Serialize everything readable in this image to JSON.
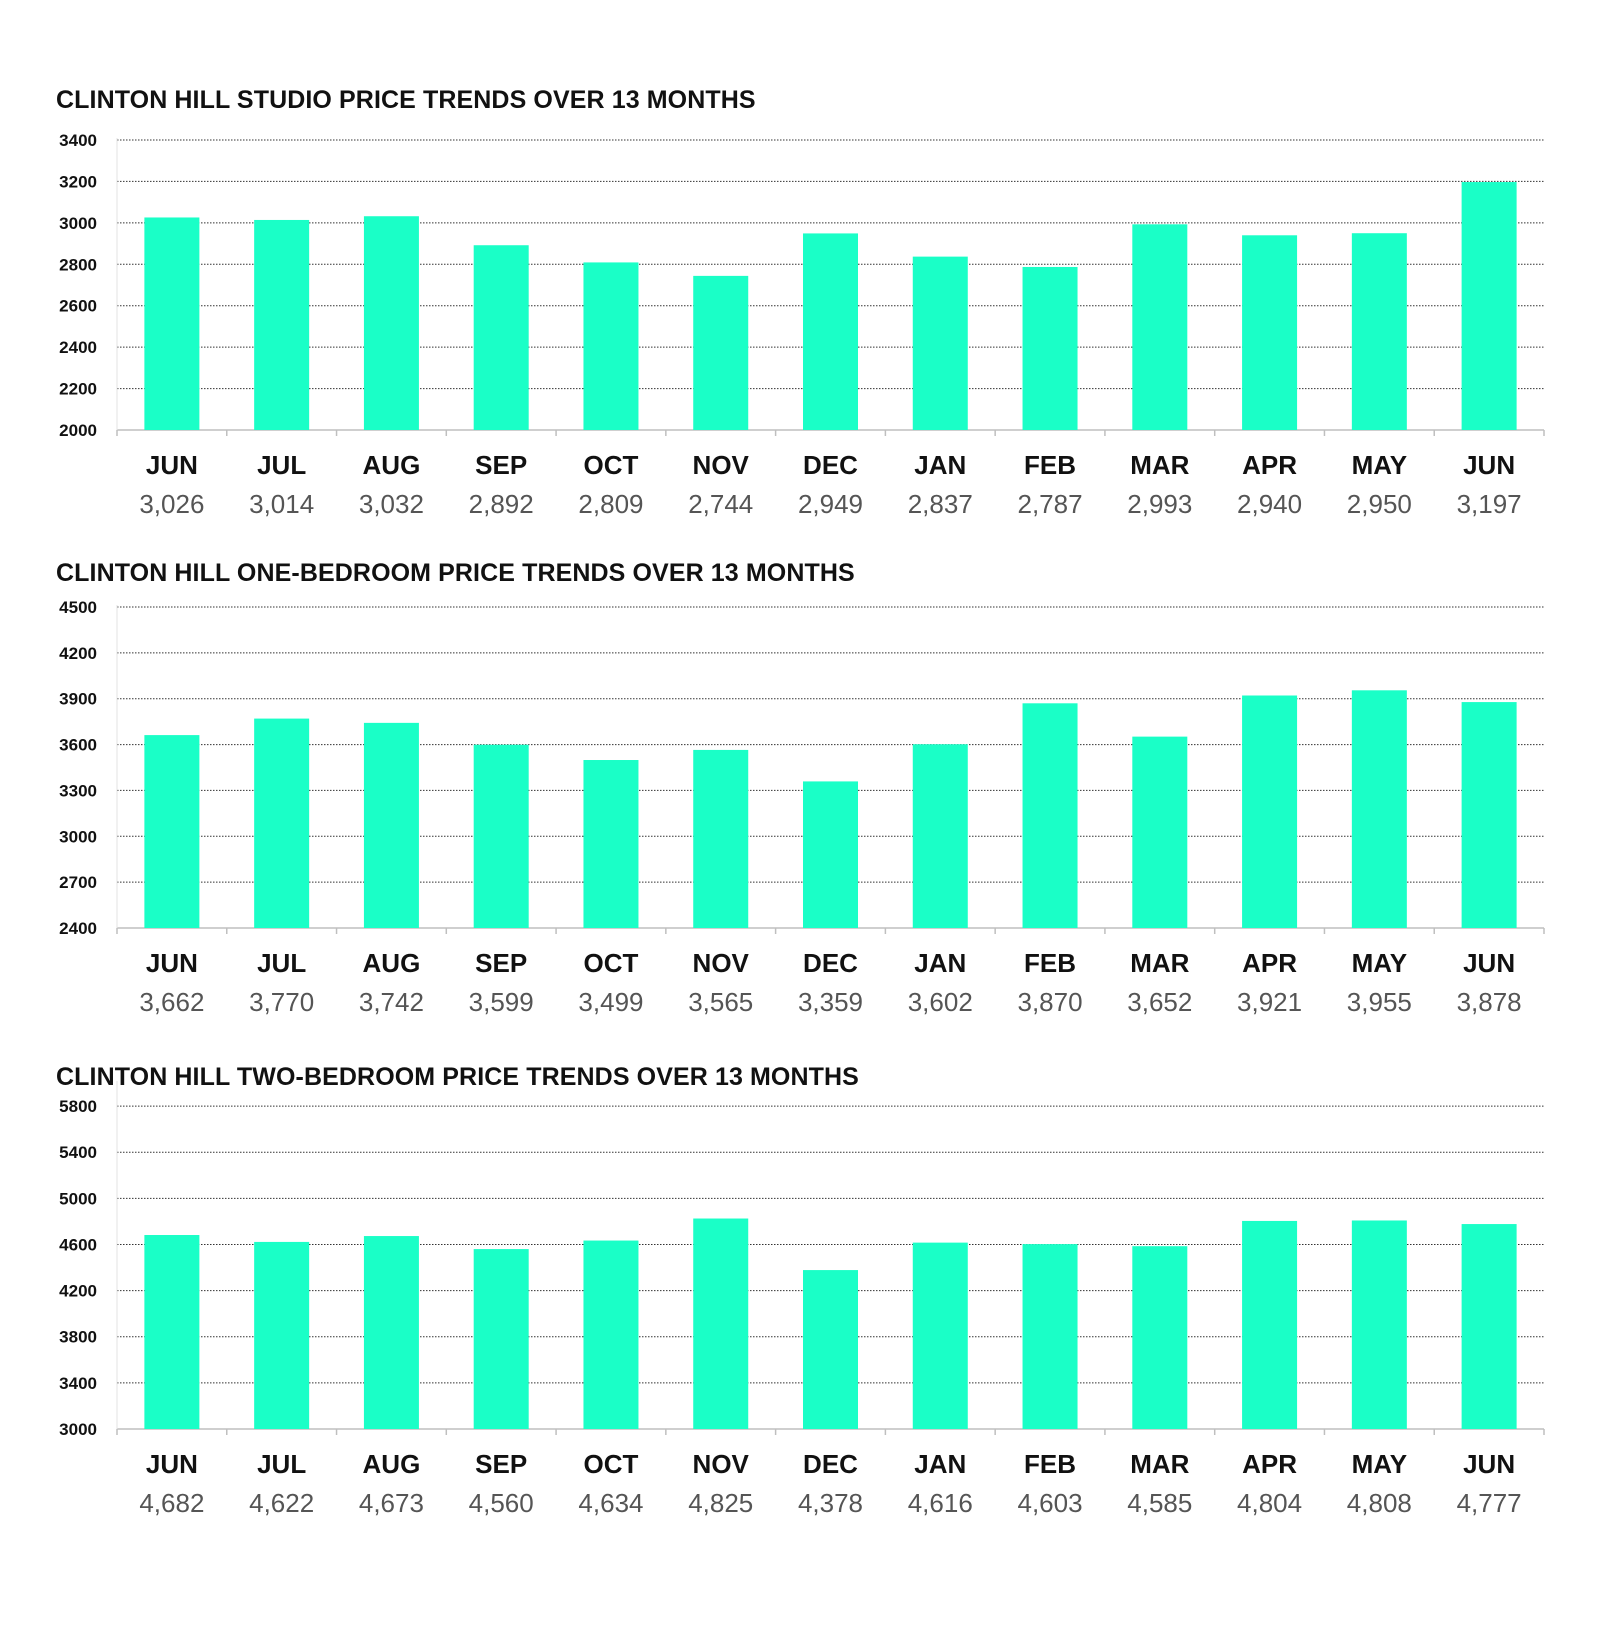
{
  "chart_data": [
    {
      "type": "bar",
      "title": "CLINTON HILL STUDIO PRICE TRENDS OVER 13 MONTHS",
      "categories": [
        "JUN",
        "JUL",
        "AUG",
        "SEP",
        "OCT",
        "NOV",
        "DEC",
        "JAN",
        "FEB",
        "MAR",
        "APR",
        "MAY",
        "JUN"
      ],
      "values": [
        3026,
        3014,
        3032,
        2892,
        2809,
        2744,
        2949,
        2837,
        2787,
        2993,
        2940,
        2950,
        3197
      ],
      "value_labels": [
        "3,026",
        "3,014",
        "3,032",
        "2,892",
        "2,809",
        "2,744",
        "2,949",
        "2,837",
        "2,787",
        "2,993",
        "2,940",
        "2,950",
        "3,197"
      ],
      "ylim": [
        2000,
        3400
      ],
      "yticks": [
        2000,
        2200,
        2400,
        2600,
        2800,
        3000,
        3200,
        3400
      ],
      "grid": true,
      "bar_color": "#1affc7"
    },
    {
      "type": "bar",
      "title": "CLINTON HILL ONE-BEDROOM PRICE TRENDS OVER 13 MONTHS",
      "categories": [
        "JUN",
        "JUL",
        "AUG",
        "SEP",
        "OCT",
        "NOV",
        "DEC",
        "JAN",
        "FEB",
        "MAR",
        "APR",
        "MAY",
        "JUN"
      ],
      "values": [
        3662,
        3770,
        3742,
        3599,
        3499,
        3565,
        3359,
        3602,
        3870,
        3652,
        3921,
        3955,
        3878
      ],
      "value_labels": [
        "3,662",
        "3,770",
        "3,742",
        "3,599",
        "3,499",
        "3,565",
        "3,359",
        "3,602",
        "3,870",
        "3,652",
        "3,921",
        "3,955",
        "3,878"
      ],
      "ylim": [
        2400,
        4500
      ],
      "yticks": [
        2400,
        2700,
        3000,
        3300,
        3600,
        3900,
        4200,
        4500
      ],
      "grid": true,
      "bar_color": "#1affc7"
    },
    {
      "type": "bar",
      "title": "CLINTON HILL TWO-BEDROOM PRICE TRENDS OVER 13 MONTHS",
      "categories": [
        "JUN",
        "JUL",
        "AUG",
        "SEP",
        "OCT",
        "NOV",
        "DEC",
        "JAN",
        "FEB",
        "MAR",
        "APR",
        "MAY",
        "JUN"
      ],
      "values": [
        4682,
        4622,
        4673,
        4560,
        4634,
        4825,
        4378,
        4616,
        4603,
        4585,
        4804,
        4808,
        4777
      ],
      "value_labels": [
        "4,682",
        "4,622",
        "4,673",
        "4,560",
        "4,634",
        "4,825",
        "4,378",
        "4,616",
        "4,603",
        "4,585",
        "4,804",
        "4,808",
        "4,777"
      ],
      "ylim": [
        3000,
        6000
      ],
      "yticks": [
        3000,
        3400,
        3800,
        4200,
        4600,
        5000,
        5400,
        5800
      ],
      "grid": true,
      "bar_color": "#1affc7"
    }
  ]
}
